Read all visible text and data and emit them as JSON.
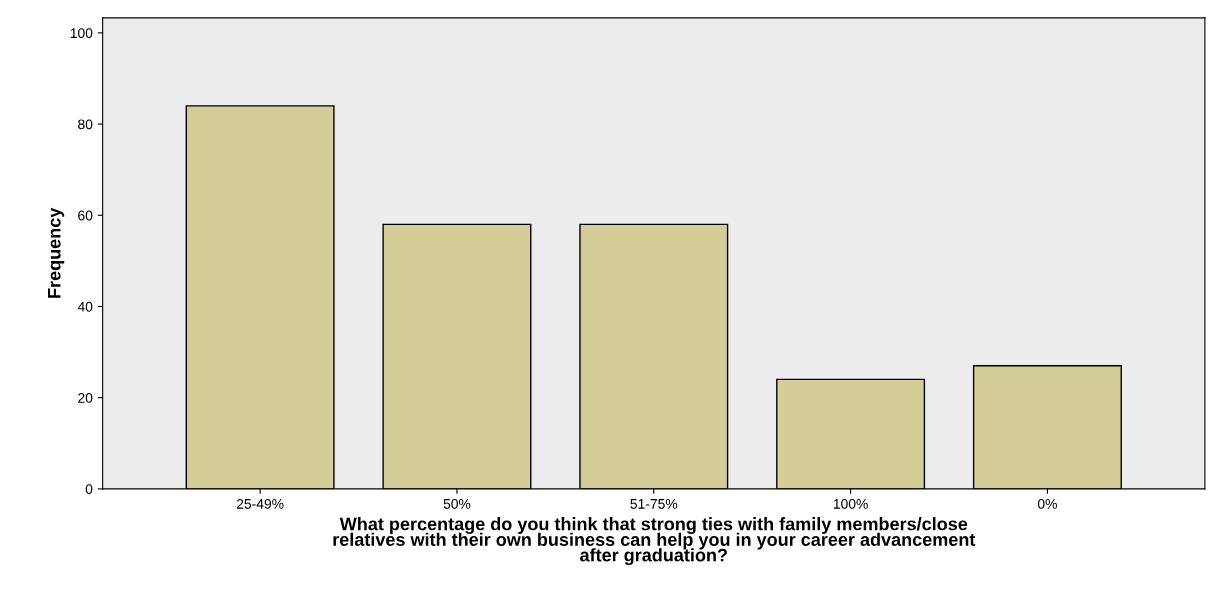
{
  "chart_data": {
    "type": "bar",
    "categories": [
      "25-49%",
      "50%",
      "51-75%",
      "100%",
      "0%"
    ],
    "values": [
      84,
      58,
      58,
      24,
      27
    ],
    "color": "#d3ce97",
    "xlabel": "What percentage do you think that strong ties with family members/close\nrelatives with their own business can help you in your career advancement\nafter graduation?",
    "ylabel": "Frequency",
    "ylim": [
      0,
      103.3
    ],
    "yticks": [
      0,
      20,
      40,
      60,
      80,
      100
    ],
    "grid": false
  }
}
